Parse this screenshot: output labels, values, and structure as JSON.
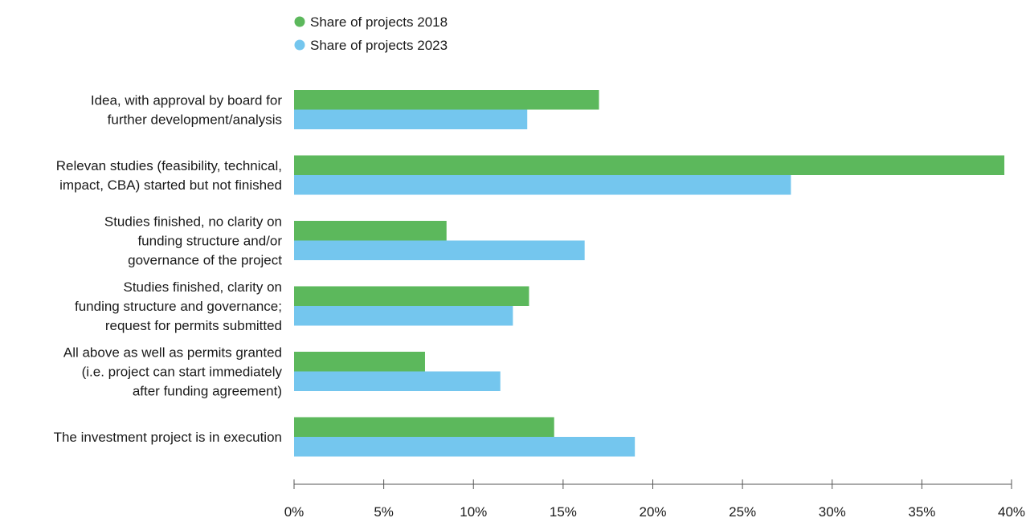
{
  "chart_data": {
    "type": "bar",
    "orientation": "horizontal",
    "title": "",
    "xlabel": "",
    "ylabel": "",
    "xlim": [
      0,
      40
    ],
    "x_ticks": [
      0,
      5,
      10,
      15,
      20,
      25,
      30,
      35,
      40
    ],
    "x_tick_format": "percent",
    "grid": false,
    "legend_position": "top-left",
    "categories": [
      [
        "Idea, with approval by board for",
        "further development/analysis"
      ],
      [
        "Relevan studies (feasibility, technical,",
        "impact, CBA) started but not finished"
      ],
      [
        "Studies finished, no clarity on",
        "funding structure and/or",
        "governance of the project"
      ],
      [
        "Studies finished, clarity on",
        "funding structure and governance;",
        "request for permits submitted"
      ],
      [
        "All above as well as permits granted",
        "(i.e. project can start immediately",
        "after funding agreement)"
      ],
      [
        "The investment project is in execution"
      ]
    ],
    "series": [
      {
        "name": "Share of projects 2018",
        "color": "#5cb85c",
        "values": [
          17.0,
          39.6,
          8.5,
          13.1,
          7.3,
          14.5
        ]
      },
      {
        "name": "Share of projects 2023",
        "color": "#74c6ee",
        "values": [
          13.0,
          27.7,
          16.2,
          12.2,
          11.5,
          19.0
        ]
      }
    ]
  }
}
